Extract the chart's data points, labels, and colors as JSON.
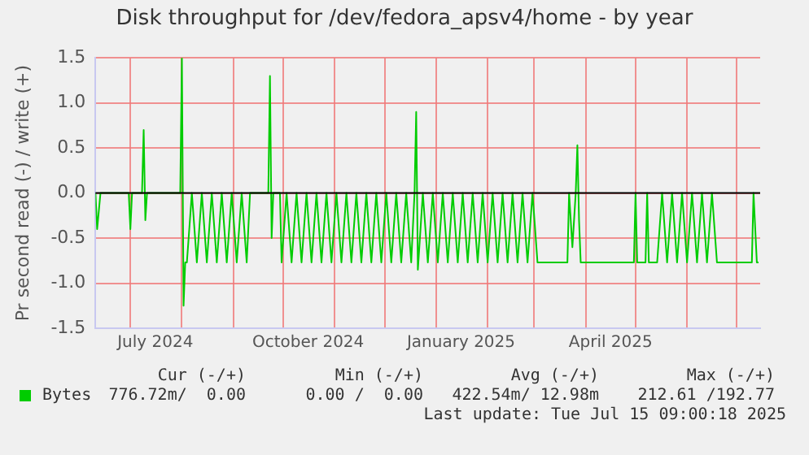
{
  "chart_data": {
    "type": "line",
    "title": "Disk throughput for /dev/fedora_apsv4/home - by year",
    "ylabel": "Pr second read (-) / write (+)",
    "xlim": [
      "2024-06-10",
      "2025-07-15"
    ],
    "xticks": [
      {
        "value": "2024-07-01",
        "label": null
      },
      {
        "value": "2024-07-16",
        "label": "July 2024"
      },
      {
        "value": "2024-08-01",
        "label": null
      },
      {
        "value": "2024-09-01",
        "label": null
      },
      {
        "value": "2024-10-01",
        "label": null
      },
      {
        "value": "2024-10-16",
        "label": "October 2024"
      },
      {
        "value": "2024-11-01",
        "label": null
      },
      {
        "value": "2024-12-01",
        "label": null
      },
      {
        "value": "2025-01-01",
        "label": null
      },
      {
        "value": "2025-01-16",
        "label": "January 2025"
      },
      {
        "value": "2025-02-01",
        "label": null
      },
      {
        "value": "2025-03-01",
        "label": null
      },
      {
        "value": "2025-04-01",
        "label": null
      },
      {
        "value": "2025-04-16",
        "label": "April 2025"
      },
      {
        "value": "2025-05-01",
        "label": null
      },
      {
        "value": "2025-06-01",
        "label": null
      },
      {
        "value": "2025-07-01",
        "label": null
      }
    ],
    "ylim": [
      -1.5,
      1.5
    ],
    "yticks": [
      {
        "value": -1.5,
        "label": "-1.5"
      },
      {
        "value": -1,
        "label": "-1.0"
      },
      {
        "value": -0.5,
        "label": "-0.5"
      },
      {
        "value": 0,
        "label": "0.0"
      },
      {
        "value": 0.5,
        "label": "0.5"
      },
      {
        "value": 1,
        "label": "1.0"
      },
      {
        "value": 1.5,
        "label": "1.5"
      }
    ],
    "grid": true,
    "legend": "bottom",
    "marker": "none",
    "line_style": "solid",
    "ref_lines": [
      {
        "axis": "y",
        "value": 0,
        "color": "#000000"
      }
    ],
    "series": [
      {
        "name": "Bytes",
        "color": "#00cc00",
        "x": [
          "2024-06-10",
          "2024-06-11",
          "2024-06-13",
          "2024-06-30",
          "2024-07-01",
          "2024-07-02",
          "2024-07-08",
          "2024-07-09",
          "2024-07-10",
          "2024-07-11",
          "2024-07-31",
          "2024-08-01",
          "2024-08-02",
          "2024-08-03",
          "2024-08-04",
          "2024-08-07",
          "2024-08-10",
          "2024-08-13",
          "2024-08-16",
          "2024-08-19",
          "2024-08-22",
          "2024-08-25",
          "2024-08-28",
          "2024-08-31",
          "2024-09-03",
          "2024-09-06",
          "2024-09-09",
          "2024-09-11",
          "2024-09-22",
          "2024-09-23",
          "2024-09-24",
          "2024-09-25",
          "2024-09-29",
          "2024-09-30",
          "2024-10-03",
          "2024-10-06",
          "2024-10-09",
          "2024-10-12",
          "2024-10-15",
          "2024-10-18",
          "2024-10-21",
          "2024-10-24",
          "2024-10-27",
          "2024-10-30",
          "2024-11-02",
          "2024-11-05",
          "2024-11-08",
          "2024-11-11",
          "2024-11-14",
          "2024-11-17",
          "2024-11-20",
          "2024-11-23",
          "2024-11-26",
          "2024-11-29",
          "2024-12-02",
          "2024-12-05",
          "2024-12-08",
          "2024-12-11",
          "2024-12-14",
          "2024-12-17",
          "2024-12-19",
          "2024-12-20",
          "2024-12-21",
          "2024-12-24",
          "2024-12-27",
          "2024-12-30",
          "2025-01-02",
          "2025-01-05",
          "2025-01-08",
          "2025-01-11",
          "2025-01-14",
          "2025-01-17",
          "2025-01-20",
          "2025-01-23",
          "2025-01-26",
          "2025-01-29",
          "2025-02-01",
          "2025-02-04",
          "2025-02-07",
          "2025-02-10",
          "2025-02-13",
          "2025-02-16",
          "2025-02-19",
          "2025-02-22",
          "2025-02-25",
          "2025-02-28",
          "2025-03-03",
          "2025-03-21",
          "2025-03-22",
          "2025-03-24",
          "2025-03-26",
          "2025-03-27",
          "2025-03-28",
          "2025-03-29",
          "2025-04-30",
          "2025-05-01",
          "2025-05-02",
          "2025-05-07",
          "2025-05-08",
          "2025-05-09",
          "2025-05-14",
          "2025-05-17",
          "2025-05-20",
          "2025-05-23",
          "2025-05-26",
          "2025-05-29",
          "2025-06-01",
          "2025-06-04",
          "2025-06-07",
          "2025-06-10",
          "2025-06-13",
          "2025-06-16",
          "2025-06-19",
          "2025-07-10",
          "2025-07-11",
          "2025-07-13",
          "2025-07-14"
        ],
        "values": [
          0,
          -0.4,
          0,
          0,
          -0.4,
          0,
          0,
          0.7,
          -0.3,
          0,
          0,
          1.5,
          -1.25,
          -0.77,
          -0.77,
          0,
          -0.77,
          0,
          -0.77,
          0,
          -0.77,
          0,
          -0.77,
          0,
          -0.77,
          0,
          -0.77,
          0,
          0,
          1.3,
          -0.5,
          0,
          0,
          -0.77,
          0,
          -0.77,
          0,
          -0.77,
          0,
          -0.77,
          0,
          -0.77,
          0,
          -0.77,
          0,
          -0.77,
          0,
          -0.77,
          0,
          -0.77,
          0,
          -0.77,
          0,
          -0.77,
          0,
          -0.77,
          0,
          -0.77,
          0,
          -0.77,
          0,
          0.9,
          -0.85,
          0,
          -0.77,
          0,
          -0.77,
          0,
          -0.77,
          0,
          -0.77,
          0,
          -0.77,
          0,
          -0.77,
          0,
          -0.77,
          0,
          -0.77,
          0,
          -0.77,
          0,
          -0.77,
          0,
          -0.77,
          0,
          -0.77,
          -0.77,
          0,
          -0.6,
          0,
          0.53,
          -0.3,
          -0.77,
          -0.77,
          0,
          -0.77,
          -0.77,
          0,
          -0.77,
          -0.77,
          0,
          -0.77,
          0,
          -0.77,
          0,
          -0.77,
          0,
          -0.77,
          0,
          -0.77,
          0,
          -0.77,
          -0.77,
          0,
          -0.77,
          -0.77
        ]
      }
    ],
    "annotations": [
      "Cur (-/+)",
      "Min (-/+)",
      "Avg (-/+)",
      "Max (-/+)",
      "776.72m/  0.00",
      "0.00 /  0.00",
      "422.54m/ 12.98m",
      "212.61 /192.77",
      "Last update: Tue Jul 15 09:00:18 2025"
    ]
  }
}
